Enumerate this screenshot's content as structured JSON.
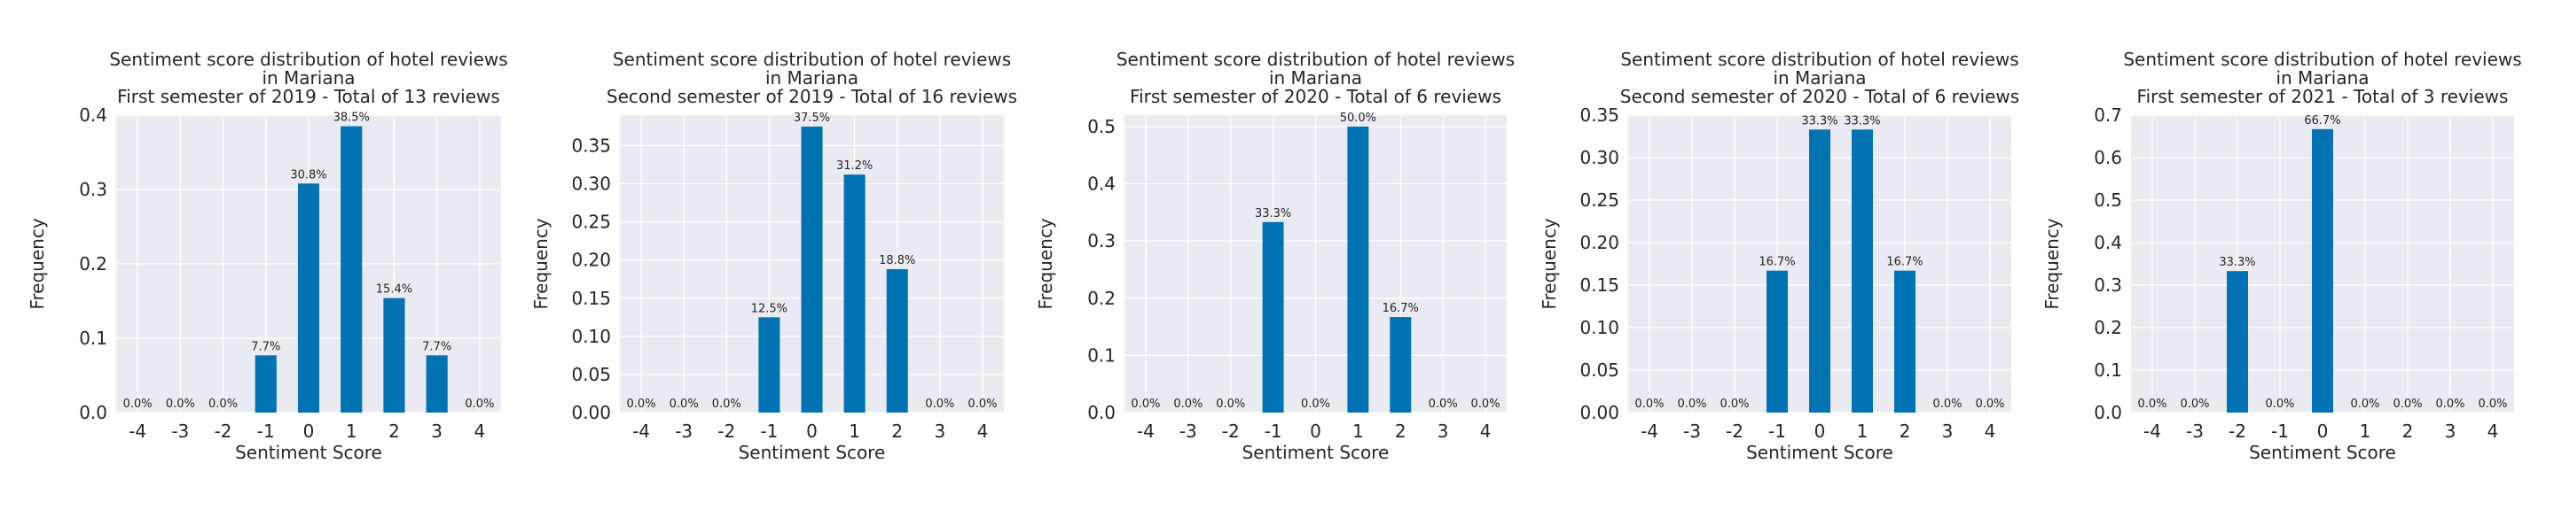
{
  "theme": {
    "background": "#ffffff",
    "plot_background": "#eaeaf2",
    "grid_color": "#ffffff",
    "bar_color": "#0173b2",
    "text_color": "#262626"
  },
  "chart_data": [
    {
      "type": "bar",
      "title": [
        "Sentiment score distribution of hotel reviews",
        "in Mariana",
        "First semester of 2019 - Total of 13 reviews"
      ],
      "xlabel": "Sentiment Score",
      "ylabel": "Frequency",
      "categories": [
        -4,
        -3,
        -2,
        -1,
        0,
        1,
        2,
        3,
        4
      ],
      "values": [
        0.0,
        0.0,
        0.0,
        0.077,
        0.308,
        0.385,
        0.154,
        0.077,
        0.0
      ],
      "bar_labels": [
        "0.0%",
        "0.0%",
        "0.0%",
        "7.7%",
        "30.8%",
        "38.5%",
        "15.4%",
        "7.7%",
        "0.0%"
      ],
      "yticks": [
        0.0,
        0.1,
        0.2,
        0.3,
        0.4
      ],
      "ytick_labels": [
        "0.0",
        "0.1",
        "0.2",
        "0.3",
        "0.4"
      ],
      "ylim": [
        0,
        0.4
      ],
      "grid": true
    },
    {
      "type": "bar",
      "title": [
        "Sentiment score distribution of hotel reviews",
        "in Mariana",
        "Second semester of 2019 - Total of 16 reviews"
      ],
      "xlabel": "Sentiment Score",
      "ylabel": "Frequency",
      "categories": [
        -4,
        -3,
        -2,
        -1,
        0,
        1,
        2,
        3,
        4
      ],
      "values": [
        0.0,
        0.0,
        0.0,
        0.125,
        0.375,
        0.312,
        0.188,
        0.0,
        0.0
      ],
      "bar_labels": [
        "0.0%",
        "0.0%",
        "0.0%",
        "12.5%",
        "37.5%",
        "31.2%",
        "18.8%",
        "0.0%",
        "0.0%"
      ],
      "yticks": [
        0.0,
        0.05,
        0.1,
        0.15,
        0.2,
        0.25,
        0.3,
        0.35
      ],
      "ytick_labels": [
        "0.00",
        "0.05",
        "0.10",
        "0.15",
        "0.20",
        "0.25",
        "0.30",
        "0.35"
      ],
      "ylim": [
        0,
        0.39
      ],
      "grid": true
    },
    {
      "type": "bar",
      "title": [
        "Sentiment score distribution of hotel reviews",
        "in Mariana",
        "First semester of 2020 - Total of 6 reviews"
      ],
      "xlabel": "Sentiment Score",
      "ylabel": "Frequency",
      "categories": [
        -4,
        -3,
        -2,
        -1,
        0,
        1,
        2,
        3,
        4
      ],
      "values": [
        0.0,
        0.0,
        0.0,
        0.333,
        0.0,
        0.5,
        0.167,
        0.0,
        0.0
      ],
      "bar_labels": [
        "0.0%",
        "0.0%",
        "0.0%",
        "33.3%",
        "0.0%",
        "50.0%",
        "16.7%",
        "0.0%",
        "0.0%"
      ],
      "yticks": [
        0.0,
        0.1,
        0.2,
        0.3,
        0.4,
        0.5
      ],
      "ytick_labels": [
        "0.0",
        "0.1",
        "0.2",
        "0.3",
        "0.4",
        "0.5"
      ],
      "ylim": [
        0,
        0.52
      ],
      "grid": true
    },
    {
      "type": "bar",
      "title": [
        "Sentiment score distribution of hotel reviews",
        "in Mariana",
        "Second semester of 2020 - Total of 6 reviews"
      ],
      "xlabel": "Sentiment Score",
      "ylabel": "Frequency",
      "categories": [
        -4,
        -3,
        -2,
        -1,
        0,
        1,
        2,
        3,
        4
      ],
      "values": [
        0.0,
        0.0,
        0.0,
        0.167,
        0.333,
        0.333,
        0.167,
        0.0,
        0.0
      ],
      "bar_labels": [
        "0.0%",
        "0.0%",
        "0.0%",
        "16.7%",
        "33.3%",
        "33.3%",
        "16.7%",
        "0.0%",
        "0.0%"
      ],
      "yticks": [
        0.0,
        0.05,
        0.1,
        0.15,
        0.2,
        0.25,
        0.3,
        0.35
      ],
      "ytick_labels": [
        "0.00",
        "0.05",
        "0.10",
        "0.15",
        "0.20",
        "0.25",
        "0.30",
        "0.35"
      ],
      "ylim": [
        0,
        0.35
      ],
      "grid": true
    },
    {
      "type": "bar",
      "title": [
        "Sentiment score distribution of hotel reviews",
        "in Mariana",
        "First semester of 2021 - Total of 3 reviews"
      ],
      "xlabel": "Sentiment Score",
      "ylabel": "Frequency",
      "categories": [
        -4,
        -3,
        -2,
        -1,
        0,
        1,
        2,
        3,
        4
      ],
      "values": [
        0.0,
        0.0,
        0.333,
        0.0,
        0.667,
        0.0,
        0.0,
        0.0,
        0.0
      ],
      "bar_labels": [
        "0.0%",
        "0.0%",
        "33.3%",
        "0.0%",
        "66.7%",
        "0.0%",
        "0.0%",
        "0.0%",
        "0.0%"
      ],
      "yticks": [
        0.0,
        0.1,
        0.2,
        0.3,
        0.4,
        0.5,
        0.6,
        0.7
      ],
      "ytick_labels": [
        "0.0",
        "0.1",
        "0.2",
        "0.3",
        "0.4",
        "0.5",
        "0.6",
        "0.7"
      ],
      "ylim": [
        0,
        0.7
      ],
      "grid": true
    }
  ]
}
